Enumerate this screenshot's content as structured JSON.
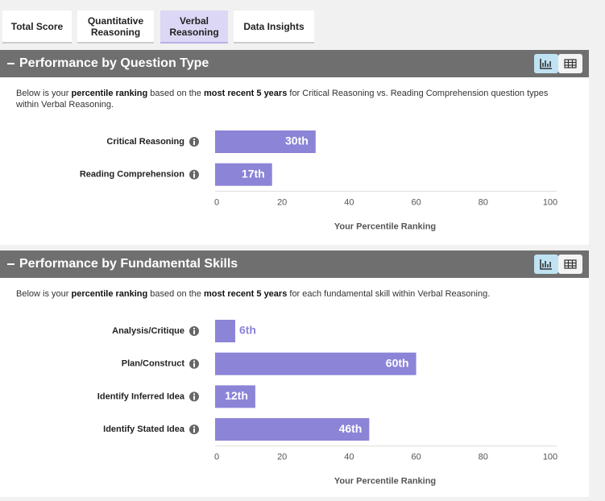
{
  "tabs": [
    "Total Score",
    "Quantitative Reasoning",
    "Verbal Reasoning",
    "Data Insights"
  ],
  "sections": [
    {
      "title": "Performance by Question Type",
      "description": [
        "Below is your ",
        "percentile ranking",
        " based on the ",
        "most recent 5 years",
        " for Critical Reasoning vs. Reading Comprehension question types within Verbal Reasoning."
      ]
    },
    {
      "title": "Performance by Fundamental Skills",
      "description": [
        "Below is your ",
        "percentile ranking",
        " based on the ",
        "most recent 5 years",
        " for each fundamental skill within Verbal Reasoning."
      ]
    }
  ],
  "chart_data": [
    {
      "type": "bar",
      "orientation": "horizontal",
      "categories": [
        "Critical Reasoning",
        "Reading Comprehension"
      ],
      "values": [
        30,
        17
      ],
      "value_labels": [
        "30th",
        "17th"
      ],
      "color": "#8b84d7",
      "xlim": [
        0,
        100
      ],
      "xticks": [
        0,
        20,
        40,
        60,
        80,
        100
      ],
      "xlabel": "Your Percentile Ranking"
    },
    {
      "type": "bar",
      "orientation": "horizontal",
      "categories": [
        "Analysis/Critique",
        "Plan/Construct",
        "Identify Inferred Idea",
        "Identify Stated Idea"
      ],
      "values": [
        6,
        60,
        12,
        46
      ],
      "value_labels": [
        "6th",
        "60th",
        "12th",
        "46th"
      ],
      "color": "#8b84d7",
      "xlim": [
        0,
        100
      ],
      "xticks": [
        0,
        20,
        40,
        60,
        80,
        100
      ],
      "xlabel": "Your Percentile Ranking"
    }
  ]
}
